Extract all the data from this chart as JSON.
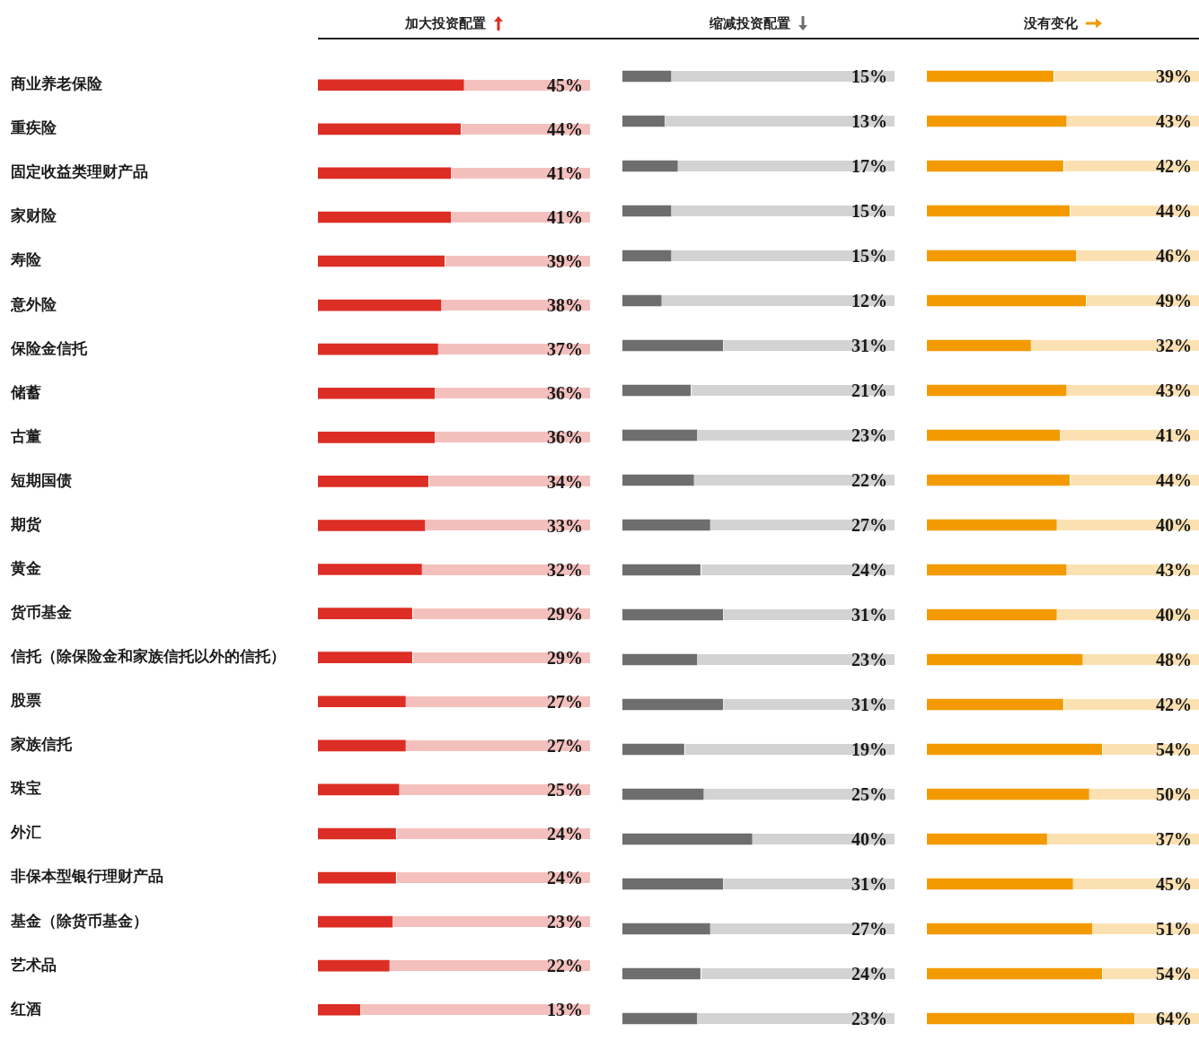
{
  "chart_data": [
    {
      "type": "bar",
      "orientation": "horizontal",
      "title": "加大投资配置",
      "color": "#dc2e24",
      "xlim": [
        0,
        84
      ],
      "tick_labels": "y",
      "legend": false,
      "categories": [
        "商业养老保险",
        "重疾险",
        "固定收益类理财产品",
        "家财险",
        "寿险",
        "意外险",
        "保险金信托",
        "储蓄",
        "古董",
        "短期国债",
        "期货",
        "黄金",
        "货币基金",
        "信托（除保险金和家族信托以外的信托）",
        "股票",
        "家族信托",
        "珠宝",
        "外汇",
        "非保本型银行理财产品",
        "基金（除货币基金）",
        "艺术品",
        "红酒"
      ],
      "values": [
        45,
        44,
        41,
        41,
        39,
        38,
        37,
        36,
        36,
        34,
        33,
        32,
        29,
        29,
        27,
        27,
        25,
        24,
        24,
        23,
        22,
        13
      ],
      "value_labels": [
        "45%",
        "44%",
        "41%",
        "41%",
        "39%",
        "38%",
        "37%",
        "36%",
        "36%",
        "34%",
        "33%",
        "32%",
        "29%",
        "29%",
        "27%",
        "27%",
        "25%",
        "24%",
        "24%",
        "23%",
        "22%",
        "13%"
      ]
    },
    {
      "type": "bar",
      "orientation": "horizontal",
      "title": "缩减投资配置",
      "color": "#6e6e6e",
      "xlim": [
        0,
        84
      ],
      "tick_labels": false,
      "legend": false,
      "categories": [
        null,
        null,
        null,
        null,
        null,
        null,
        null,
        null,
        null,
        null,
        null,
        null,
        null,
        null,
        null,
        null,
        null,
        null,
        null,
        null,
        null,
        null
      ],
      "values": [
        15,
        13,
        17,
        15,
        15,
        12,
        31,
        21,
        23,
        22,
        27,
        24,
        31,
        23,
        31,
        19,
        25,
        40,
        31,
        27,
        24,
        23
      ],
      "value_labels": [
        "15%",
        "13%",
        "17%",
        "15%",
        "15%",
        "12%",
        "31%",
        "21%",
        "23%",
        "22%",
        "27%",
        "24%",
        "31%",
        "23%",
        "31%",
        "19%",
        "25%",
        "40%",
        "31%",
        "27%",
        "24%",
        "23%"
      ]
    },
    {
      "type": "bar",
      "orientation": "horizontal",
      "title": "没有变化",
      "color": "#f39a00",
      "xlim": [
        0,
        84
      ],
      "tick_labels": false,
      "legend": false,
      "categories": [
        null,
        null,
        null,
        null,
        null,
        null,
        null,
        null,
        null,
        null,
        null,
        null,
        null,
        null,
        null,
        null,
        null,
        null,
        null,
        null,
        null,
        null
      ],
      "values": [
        39,
        43,
        42,
        44,
        46,
        49,
        32,
        43,
        41,
        44,
        40,
        43,
        40,
        48,
        42,
        54,
        50,
        37,
        45,
        51,
        54,
        64
      ],
      "value_labels": [
        "39%",
        "43%",
        "42%",
        "44%",
        "46%",
        "49%",
        "32%",
        "43%",
        "41%",
        "44%",
        "40%",
        "43%",
        "40%",
        "48%",
        "42%",
        "54%",
        "50%",
        "37%",
        "45%",
        "51%",
        "54%",
        "64%"
      ]
    }
  ]
}
